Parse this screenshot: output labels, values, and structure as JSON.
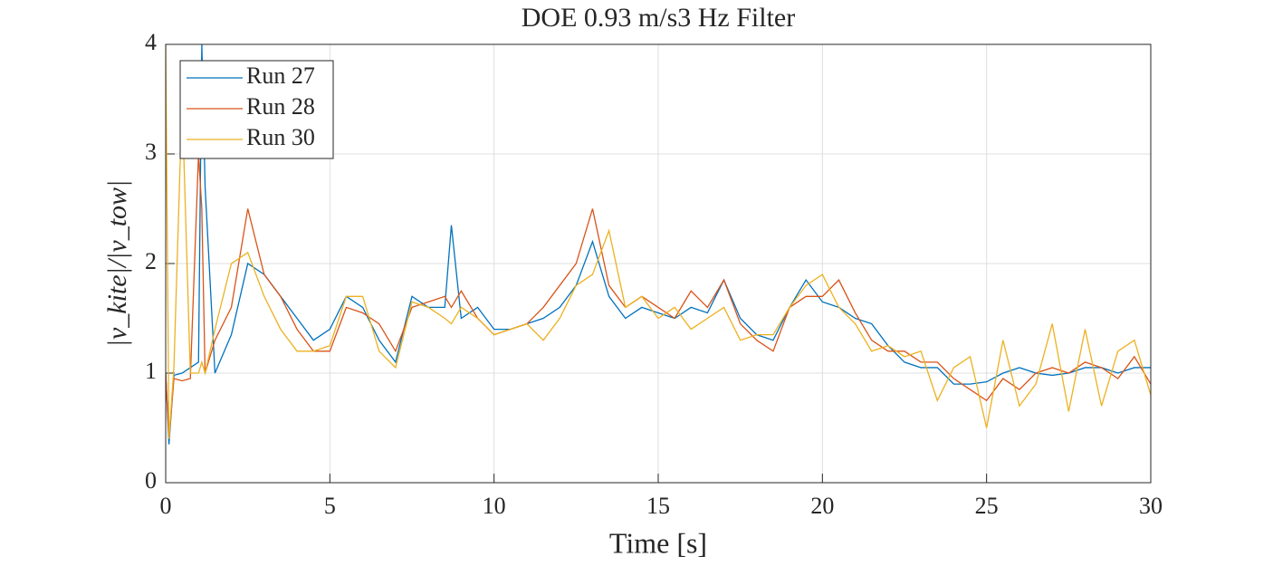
{
  "chart_data": {
    "type": "line",
    "title": "DOE 0.93 m/s3 Hz Filter",
    "x_label": "Time [s]",
    "y_label": "|v_kite|/|v_tow|",
    "x": [
      0,
      0.1,
      0.25,
      0.5,
      0.75,
      1,
      1.1,
      1.2,
      1.5,
      2,
      2.5,
      3,
      3.5,
      4,
      4.5,
      5,
      5.5,
      6,
      6.5,
      7,
      7.5,
      8,
      8.5,
      8.7,
      9,
      9.5,
      10,
      10.5,
      11,
      11.5,
      12,
      12.5,
      13,
      13.5,
      14,
      14.5,
      15,
      15.5,
      16,
      16.5,
      17,
      17.5,
      18,
      18.5,
      19,
      19.5,
      20,
      20.5,
      21,
      21.5,
      22,
      22.5,
      23,
      23.5,
      24,
      24.5,
      25,
      25.5,
      26,
      26.5,
      27,
      27.5,
      28,
      28.5,
      29,
      29.5,
      30
    ],
    "series": [
      {
        "name": "Run 27",
        "color": "#0072BD",
        "values": [
          1.0,
          0.35,
          0.98,
          1.0,
          1.05,
          1.1,
          4.0,
          2.7,
          1.0,
          1.35,
          2.0,
          1.9,
          1.7,
          1.5,
          1.3,
          1.4,
          1.7,
          1.6,
          1.3,
          1.1,
          1.7,
          1.6,
          1.6,
          2.35,
          1.5,
          1.6,
          1.4,
          1.4,
          1.45,
          1.5,
          1.6,
          1.8,
          2.2,
          1.7,
          1.5,
          1.6,
          1.55,
          1.5,
          1.6,
          1.55,
          1.85,
          1.5,
          1.35,
          1.3,
          1.6,
          1.85,
          1.65,
          1.6,
          1.5,
          1.45,
          1.25,
          1.1,
          1.05,
          1.05,
          0.9,
          0.9,
          0.92,
          1.0,
          1.05,
          1.0,
          0.98,
          1.0,
          1.05,
          1.05,
          1.0,
          1.05,
          1.05
        ]
      },
      {
        "name": "Run 28",
        "color": "#D95319",
        "values": [
          1.0,
          0.4,
          0.95,
          0.93,
          0.95,
          3.0,
          2.5,
          1.0,
          1.3,
          1.6,
          2.5,
          1.9,
          1.7,
          1.4,
          1.2,
          1.2,
          1.6,
          1.55,
          1.45,
          1.2,
          1.6,
          1.65,
          1.7,
          1.6,
          1.75,
          1.5,
          1.35,
          1.4,
          1.45,
          1.6,
          1.8,
          2.0,
          2.5,
          1.8,
          1.6,
          1.7,
          1.6,
          1.5,
          1.75,
          1.6,
          1.85,
          1.45,
          1.3,
          1.2,
          1.6,
          1.7,
          1.7,
          1.85,
          1.55,
          1.3,
          1.2,
          1.2,
          1.1,
          1.1,
          0.95,
          0.85,
          0.75,
          0.95,
          0.85,
          1.0,
          1.05,
          1.0,
          1.1,
          1.05,
          0.95,
          1.15,
          0.9
        ]
      },
      {
        "name": "Run 30",
        "color": "#EDB120",
        "values": [
          4.0,
          0.4,
          1.05,
          3.5,
          1.0,
          1.0,
          1.1,
          1.0,
          1.4,
          2.0,
          2.1,
          1.7,
          1.4,
          1.2,
          1.2,
          1.25,
          1.7,
          1.7,
          1.2,
          1.05,
          1.65,
          1.6,
          1.5,
          1.45,
          1.6,
          1.5,
          1.35,
          1.4,
          1.45,
          1.3,
          1.5,
          1.8,
          1.9,
          2.3,
          1.6,
          1.7,
          1.5,
          1.6,
          1.4,
          1.5,
          1.6,
          1.3,
          1.35,
          1.35,
          1.6,
          1.8,
          1.9,
          1.6,
          1.45,
          1.2,
          1.25,
          1.15,
          1.2,
          0.75,
          1.05,
          1.15,
          0.5,
          1.3,
          0.7,
          0.9,
          1.45,
          0.65,
          1.4,
          0.7,
          1.2,
          1.3,
          0.8
        ]
      }
    ],
    "xlim": [
      0,
      30
    ],
    "xticks": [
      0,
      5,
      10,
      15,
      20,
      25,
      30
    ],
    "ylim": [
      0,
      4
    ],
    "yticks": [
      0,
      1,
      2,
      3,
      4
    ],
    "grid": true,
    "legend": "upper-left"
  }
}
